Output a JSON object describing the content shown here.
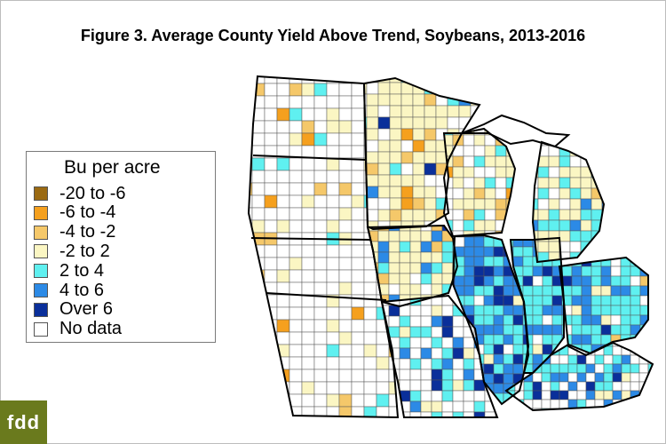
{
  "title": "Figure 3. Average County Yield Above Trend, Soybeans, 2013-2016",
  "legend": {
    "title": "Bu per acre",
    "items": [
      {
        "label": "-20 to -6",
        "color": "#9b6a12"
      },
      {
        "label": "-6 to -4",
        "color": "#f5a01e"
      },
      {
        "label": "-4 to -2",
        "color": "#f5c86a"
      },
      {
        "label": "-2 to 2",
        "color": "#fbf6c3"
      },
      {
        "label": "2 to 4",
        "color": "#5ff0f0"
      },
      {
        "label": "4 to 6",
        "color": "#2c8ae6"
      },
      {
        "label": "Over 6",
        "color": "#0a2f9a"
      },
      {
        "label": "No data",
        "color": "#ffffff"
      }
    ]
  },
  "logo_text": "fdd",
  "colors": {
    "background": "#ffffff",
    "county_border": "#555555",
    "state_border": "#000000",
    "logo_background": "#6a7a1d"
  }
}
